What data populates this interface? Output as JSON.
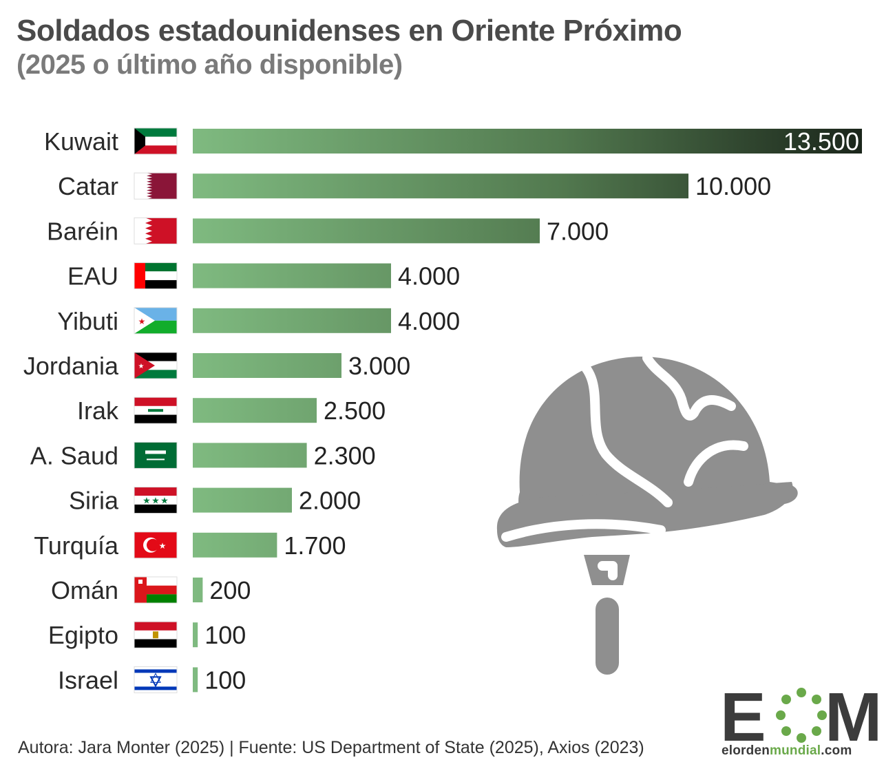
{
  "header": {
    "title": "Soldados estadounidenses en Oriente Próximo",
    "subtitle": "(2025 o último año disponible)"
  },
  "footer": {
    "credit": "Autora: Jara Monter (2025) | Fuente: US Department of State (2025), Axios (2023)"
  },
  "brand": {
    "logo_letters": "EOM",
    "site_prefix": "elorden",
    "site_accent": "mundial",
    "site_suffix": ".com"
  },
  "colors": {
    "bar_light": "#7fba80",
    "bar_dark": "#1b261b",
    "icon_gray": "#8f8f8f",
    "brand_green": "#6aa94a"
  },
  "decoration": {
    "icon": "military-helmet-icon"
  },
  "chart_data": {
    "type": "bar",
    "orientation": "horizontal",
    "categories": [
      "Kuwait",
      "Catar",
      "Baréin",
      "EAU",
      "Yibuti",
      "Jordania",
      "Irak",
      "A.   Saud",
      "Siria",
      "Turquía",
      "Omán",
      "Egipto",
      "Israel"
    ],
    "values": [
      13500,
      10000,
      7000,
      4000,
      4000,
      3000,
      2500,
      2300,
      2000,
      1700,
      200,
      100,
      100
    ],
    "value_labels": [
      "13.500",
      "10.000",
      "7.000",
      "4.000",
      "4.000",
      "3.000",
      "2.500",
      "2.300",
      "2.000",
      "1.700",
      "200",
      "100",
      "100"
    ],
    "flags": [
      "kuwait-flag",
      "qatar-flag",
      "bahrain-flag",
      "uae-flag",
      "djibouti-flag",
      "jordan-flag",
      "iraq-flag",
      "saudi-arabia-flag",
      "syria-flag",
      "turkey-flag",
      "oman-flag",
      "egypt-flag",
      "israel-flag"
    ],
    "xlim": [
      0,
      13500
    ],
    "grid": false,
    "legend": "none"
  }
}
